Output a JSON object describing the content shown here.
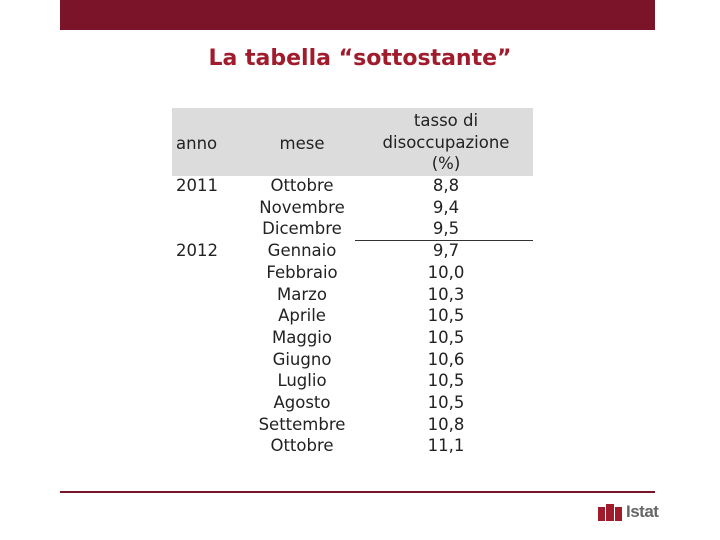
{
  "title": "La tabella “sottostante”",
  "table": {
    "header": {
      "anno": "anno",
      "mese": "mese",
      "tasso": "tasso di disoccupazione (%)"
    },
    "rows": [
      {
        "anno": "2011",
        "mese": "Ottobre",
        "tasso": "8,8"
      },
      {
        "mese": "Novembre",
        "tasso": "9,4"
      },
      {
        "mese": "Dicembre",
        "tasso": "9,5"
      },
      {
        "anno": "2012",
        "mese": "Gennaio",
        "tasso": "9,7"
      },
      {
        "mese": "Febbraio",
        "tasso": "10,0"
      },
      {
        "mese": "Marzo",
        "tasso": "10,3"
      },
      {
        "mese": "Aprile",
        "tasso": "10,5"
      },
      {
        "mese": "Maggio",
        "tasso": "10,5"
      },
      {
        "mese": "Giugno",
        "tasso": "10,6"
      },
      {
        "mese": "Luglio",
        "tasso": "10,5"
      },
      {
        "mese": "Agosto",
        "tasso": "10,5"
      },
      {
        "mese": "Settembre",
        "tasso": "10,8"
      },
      {
        "mese": "Ottobre",
        "tasso": "11,1"
      }
    ]
  },
  "logo": "Istat"
}
